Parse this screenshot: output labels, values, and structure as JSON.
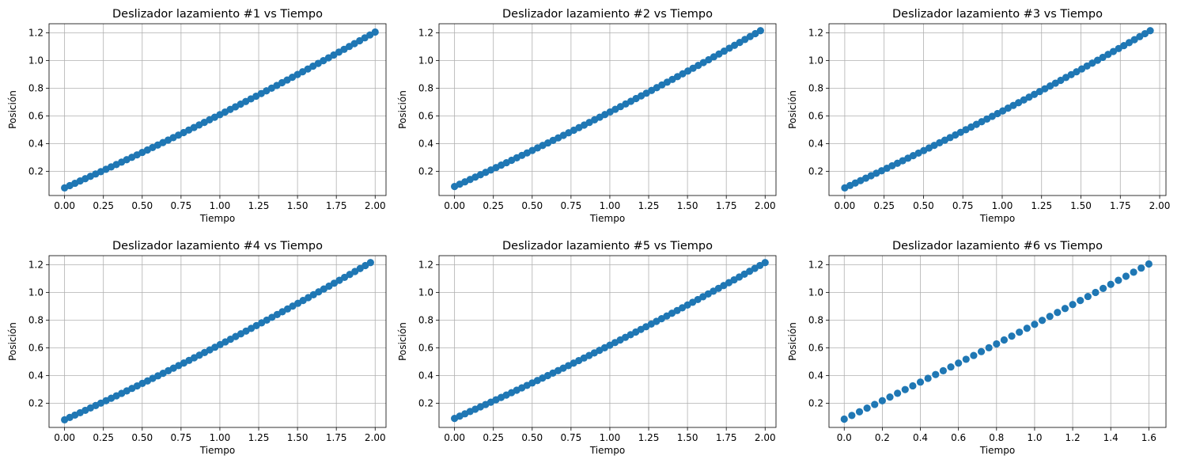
{
  "figure": {
    "colors": {
      "marker": "#1f77b4",
      "grid": "#b0b0b0",
      "axes": "#000000"
    },
    "ylabel": "Posición",
    "xlabel": "Tiempo"
  },
  "chart_data": [
    {
      "type": "scatter",
      "title": "Deslizador lazamiento #1 vs Tiempo",
      "xlabel": "Tiempo",
      "ylabel": "Posición",
      "xlim": [
        -0.1,
        2.07
      ],
      "ylim": [
        0.025,
        1.265
      ],
      "xticks": [
        "0.00",
        "0.25",
        "0.50",
        "0.75",
        "1.00",
        "1.25",
        "1.50",
        "1.75",
        "2.00"
      ],
      "yticks": [
        "0.2",
        "0.4",
        "0.6",
        "0.8",
        "1.0",
        "1.2"
      ],
      "grid": true,
      "marker": "circle",
      "series": [
        {
          "x_start": 0.0,
          "x_end": 2.0,
          "n": 61,
          "y_start": 0.08,
          "y_end": 1.205,
          "curve": 0.12
        }
      ]
    },
    {
      "type": "scatter",
      "title": "Deslizador lazamiento #2 vs Tiempo",
      "xlabel": "Tiempo",
      "ylabel": "Posición",
      "xlim": [
        -0.1,
        2.07
      ],
      "ylim": [
        0.025,
        1.265
      ],
      "xticks": [
        "0.00",
        "0.25",
        "0.50",
        "0.75",
        "1.00",
        "1.25",
        "1.50",
        "1.75",
        "2.00"
      ],
      "yticks": [
        "0.2",
        "0.4",
        "0.6",
        "0.8",
        "1.0",
        "1.2"
      ],
      "grid": true,
      "marker": "circle",
      "series": [
        {
          "x_start": 0.0,
          "x_end": 1.97,
          "n": 60,
          "y_start": 0.09,
          "y_end": 1.215,
          "curve": 0.12
        }
      ]
    },
    {
      "type": "scatter",
      "title": "Deslizador lazamiento #3 vs Tiempo",
      "xlabel": "Tiempo",
      "ylabel": "Posición",
      "xlim": [
        -0.1,
        2.04
      ],
      "ylim": [
        0.025,
        1.265
      ],
      "xticks": [
        "0.00",
        "0.25",
        "0.50",
        "0.75",
        "1.00",
        "1.25",
        "1.50",
        "1.75",
        "2.00"
      ],
      "yticks": [
        "0.2",
        "0.4",
        "0.6",
        "0.8",
        "1.0",
        "1.2"
      ],
      "grid": true,
      "marker": "circle",
      "series": [
        {
          "x_start": 0.0,
          "x_end": 1.94,
          "n": 59,
          "y_start": 0.08,
          "y_end": 1.215,
          "curve": 0.11
        }
      ]
    },
    {
      "type": "scatter",
      "title": "Deslizador lazamiento #4 vs Tiempo",
      "xlabel": "Tiempo",
      "ylabel": "Posición",
      "xlim": [
        -0.1,
        2.07
      ],
      "ylim": [
        0.025,
        1.265
      ],
      "xticks": [
        "0.00",
        "0.25",
        "0.50",
        "0.75",
        "1.00",
        "1.25",
        "1.50",
        "1.75",
        "2.00"
      ],
      "yticks": [
        "0.2",
        "0.4",
        "0.6",
        "0.8",
        "1.0",
        "1.2"
      ],
      "grid": true,
      "marker": "circle",
      "series": [
        {
          "x_start": 0.0,
          "x_end": 1.97,
          "n": 60,
          "y_start": 0.08,
          "y_end": 1.215,
          "curve": 0.12
        }
      ]
    },
    {
      "type": "scatter",
      "title": "Deslizador lazamiento #5 vs Tiempo",
      "xlabel": "Tiempo",
      "ylabel": "Posición",
      "xlim": [
        -0.1,
        2.07
      ],
      "ylim": [
        0.025,
        1.265
      ],
      "xticks": [
        "0.00",
        "0.25",
        "0.50",
        "0.75",
        "1.00",
        "1.25",
        "1.50",
        "1.75",
        "2.00"
      ],
      "yticks": [
        "0.2",
        "0.4",
        "0.6",
        "0.8",
        "1.0",
        "1.2"
      ],
      "grid": true,
      "marker": "circle",
      "series": [
        {
          "x_start": 0.0,
          "x_end": 2.0,
          "n": 61,
          "y_start": 0.09,
          "y_end": 1.215,
          "curve": 0.12
        }
      ]
    },
    {
      "type": "scatter",
      "title": "Deslizador lazamiento #6 vs Tiempo",
      "xlabel": "Tiempo",
      "ylabel": "Posición",
      "xlim": [
        -0.08,
        1.69
      ],
      "ylim": [
        0.025,
        1.265
      ],
      "xticks": [
        "0.0",
        "0.2",
        "0.4",
        "0.6",
        "0.8",
        "1.0",
        "1.2",
        "1.4",
        "1.6"
      ],
      "yticks": [
        "0.2",
        "0.4",
        "0.6",
        "0.8",
        "1.0",
        "1.2"
      ],
      "grid": true,
      "marker": "circle",
      "series": [
        {
          "x_start": 0.0,
          "x_end": 1.6,
          "n": 41,
          "y_start": 0.085,
          "y_end": 1.205,
          "curve": 0.06
        }
      ]
    }
  ]
}
